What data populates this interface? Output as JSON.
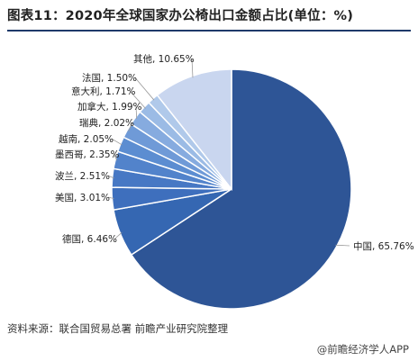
{
  "header": {
    "title": "图表11：2020年全球国家办公椅出口金额占比(单位：%)"
  },
  "footer": {
    "source": "资料来源：联合国贸易总署 前瞻产业研究院整理",
    "credit": "@前瞻经济学人APP"
  },
  "chart_data": {
    "type": "pie",
    "title": "图表11：2020年全球国家办公椅出口金额占比(单位：%)",
    "unit": "%",
    "slices": [
      {
        "label": "中国, 65.76%",
        "name": "中国",
        "value": 65.76,
        "color": "#2e5596"
      },
      {
        "label": "德国, 6.46%",
        "name": "德国",
        "value": 6.46,
        "color": "#3567b2"
      },
      {
        "label": "美国, 3.01%",
        "name": "美国",
        "value": 3.01,
        "color": "#3e6fbd"
      },
      {
        "label": "波兰, 2.51%",
        "name": "波兰",
        "value": 2.51,
        "color": "#4778c4"
      },
      {
        "label": "墨西哥, 2.35%",
        "name": "墨西哥",
        "value": 2.35,
        "color": "#5283cb"
      },
      {
        "label": "越南, 2.05%",
        "name": "越南",
        "value": 2.05,
        "color": "#5c8dd1"
      },
      {
        "label": "瑞典, 2.02%",
        "name": "瑞典",
        "value": 2.02,
        "color": "#6f9ad7"
      },
      {
        "label": "加拿大, 1.99%",
        "name": "加拿大",
        "value": 1.99,
        "color": "#86abdf"
      },
      {
        "label": "意大利, 1.71%",
        "name": "意大利",
        "value": 1.71,
        "color": "#9bbbe5"
      },
      {
        "label": "法国, 1.50%",
        "name": "法国",
        "value": 1.5,
        "color": "#b0c9ea"
      },
      {
        "label": "其他, 10.65%",
        "name": "其他",
        "value": 10.65,
        "color": "#c9d6ef"
      }
    ],
    "legend": "none",
    "labels": "outside"
  }
}
